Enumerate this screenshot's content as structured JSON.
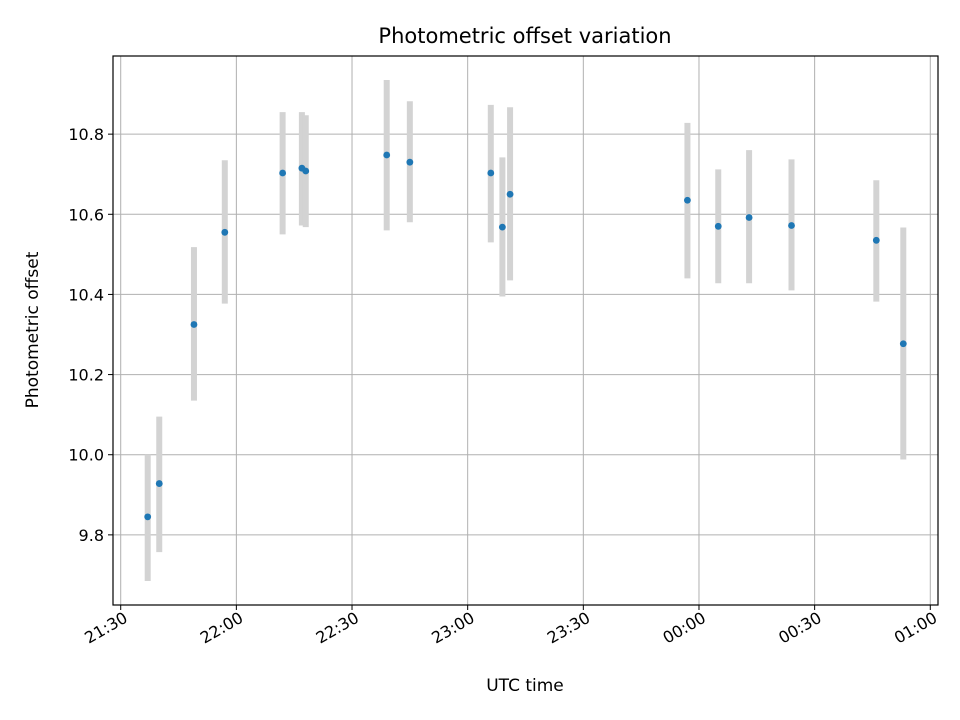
{
  "chart_data": {
    "type": "scatter",
    "title": "Photometric offset variation",
    "xlabel": "UTC time",
    "ylabel": "Photometric offset",
    "grid": true,
    "xlim": [
      "21:28",
      "01:02"
    ],
    "ylim": [
      9.625,
      10.995
    ],
    "x_ticks": [
      "21:30",
      "22:00",
      "22:30",
      "23:00",
      "23:30",
      "00:00",
      "00:30",
      "01:00"
    ],
    "y_ticks": [
      9.8,
      10.0,
      10.2,
      10.4,
      10.6,
      10.8
    ],
    "y_tick_labels": [
      "9.8",
      "10.0",
      "10.2",
      "10.4",
      "10.6",
      "10.8"
    ],
    "marker_color": "#1f77b4",
    "errorbar_color": "#d3d3d3",
    "points": [
      {
        "x": "21:37",
        "y": 9.845,
        "err_low": 9.685,
        "err_high": 10.0
      },
      {
        "x": "21:40",
        "y": 9.928,
        "err_low": 9.757,
        "err_high": 10.095
      },
      {
        "x": "21:49",
        "y": 10.325,
        "err_low": 10.135,
        "err_high": 10.518
      },
      {
        "x": "21:57",
        "y": 10.555,
        "err_low": 10.377,
        "err_high": 10.735
      },
      {
        "x": "22:12",
        "y": 10.703,
        "err_low": 10.55,
        "err_high": 10.855
      },
      {
        "x": "22:17",
        "y": 10.715,
        "err_low": 10.572,
        "err_high": 10.855
      },
      {
        "x": "22:18",
        "y": 10.708,
        "err_low": 10.568,
        "err_high": 10.847
      },
      {
        "x": "22:39",
        "y": 10.748,
        "err_low": 10.56,
        "err_high": 10.935
      },
      {
        "x": "22:45",
        "y": 10.73,
        "err_low": 10.58,
        "err_high": 10.882
      },
      {
        "x": "23:06",
        "y": 10.703,
        "err_low": 10.53,
        "err_high": 10.873
      },
      {
        "x": "23:09",
        "y": 10.568,
        "err_low": 10.395,
        "err_high": 10.742
      },
      {
        "x": "23:11",
        "y": 10.65,
        "err_low": 10.435,
        "err_high": 10.867
      },
      {
        "x": "23:57",
        "y": 10.635,
        "err_low": 10.44,
        "err_high": 10.828
      },
      {
        "x": "00:05",
        "y": 10.57,
        "err_low": 10.428,
        "err_high": 10.712
      },
      {
        "x": "00:13",
        "y": 10.592,
        "err_low": 10.428,
        "err_high": 10.76
      },
      {
        "x": "00:24",
        "y": 10.572,
        "err_low": 10.41,
        "err_high": 10.737
      },
      {
        "x": "00:46",
        "y": 10.535,
        "err_low": 10.382,
        "err_high": 10.685
      },
      {
        "x": "00:53",
        "y": 10.277,
        "err_low": 9.988,
        "err_high": 10.567
      }
    ]
  }
}
